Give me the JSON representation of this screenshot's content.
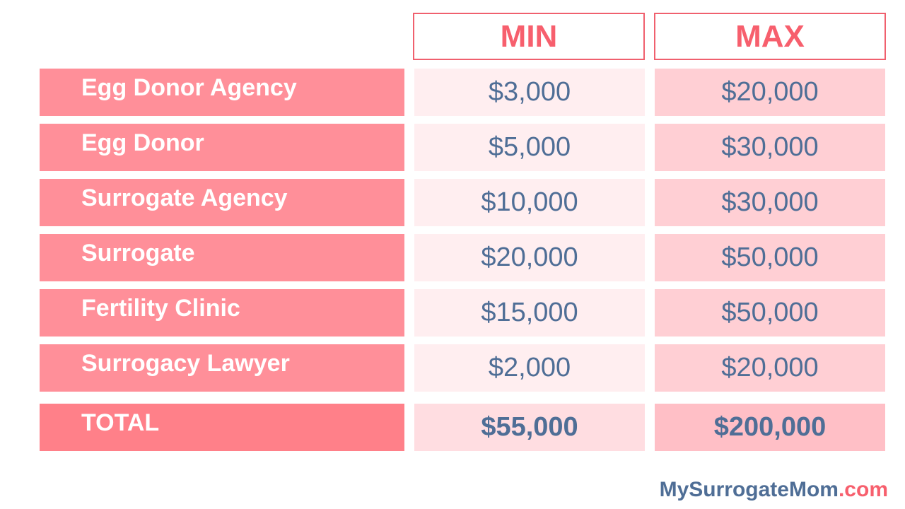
{
  "header": {
    "min": "MIN",
    "max": "MAX"
  },
  "rows": [
    {
      "label": "Egg Donor Agency",
      "min": "$3,000",
      "max": "$20,000"
    },
    {
      "label": "Egg Donor",
      "min": "$5,000",
      "max": "$30,000"
    },
    {
      "label": "Surrogate Agency",
      "min": "$10,000",
      "max": "$30,000"
    },
    {
      "label": "Surrogate",
      "min": "$20,000",
      "max": "$50,000"
    },
    {
      "label": "Fertility Clinic",
      "min": "$15,000",
      "max": "$50,000"
    },
    {
      "label": "Surrogacy Lawyer",
      "min": "$2,000",
      "max": "$20,000"
    }
  ],
  "total": {
    "label": "TOTAL",
    "min": "$55,000",
    "max": "$200,000"
  },
  "logo": {
    "name": "MySurrogateMom",
    "tld": ".com"
  },
  "colors": {
    "accent": "#f75f6d",
    "text": "#4f6e96",
    "label_bg": "#ff8f99"
  }
}
